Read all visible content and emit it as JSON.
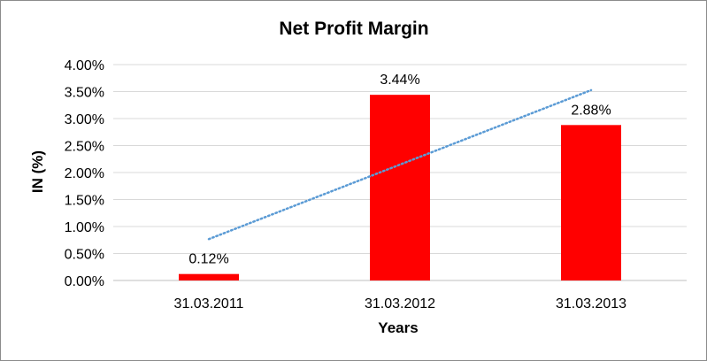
{
  "chart_data": {
    "type": "bar",
    "title": "Net Profit Margin",
    "xlabel": "Years",
    "ylabel": "IN (%)",
    "categories": [
      "31.03.2011",
      "31.03.2012",
      "31.03.2013"
    ],
    "values": [
      0.12,
      3.44,
      2.88
    ],
    "data_labels": [
      "0.12%",
      "3.44%",
      "2.88%"
    ],
    "ylim": [
      0,
      4
    ],
    "yticks": [
      0,
      0.5,
      1,
      1.5,
      2,
      2.5,
      3,
      3.5,
      4
    ],
    "ytick_labels": [
      "0.00%",
      "0.50%",
      "1.00%",
      "1.50%",
      "2.00%",
      "2.50%",
      "3.00%",
      "3.50%",
      "4.00%"
    ],
    "trendline": {
      "type": "linear",
      "style": "dotted",
      "color": "#5b9bd5"
    },
    "grid": true,
    "legend": "none",
    "bar_color": "#ff0000",
    "gridline_color": "#d9d9d9"
  }
}
